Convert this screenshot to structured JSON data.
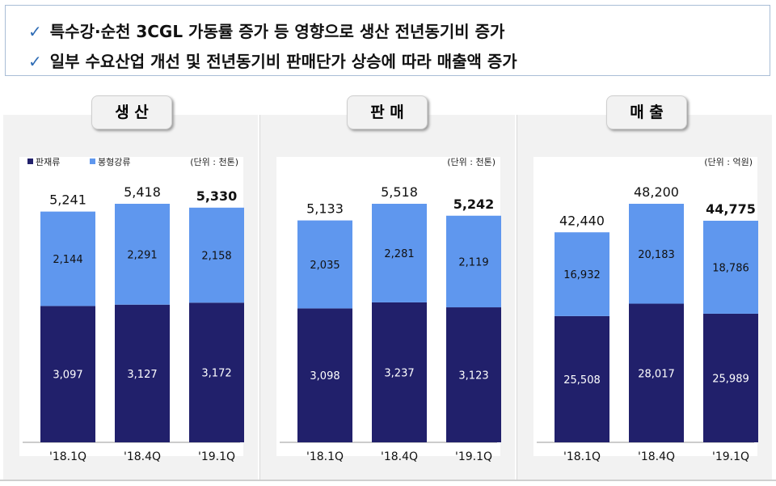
{
  "headline": {
    "bullets": [
      "특수강·순천 3CGL 가동률 증가 등 영향으로 생산 전년동기비 증가",
      "일부 수요산업 개선 및 전년동기비 판매단가 상승에 따라 매출액 증가"
    ],
    "check_glyph": "✓"
  },
  "colors": {
    "dark": "#21206b",
    "light": "#5f97ee",
    "check": "#2e6cb5"
  },
  "chart_data": [
    {
      "type": "bar",
      "stacked": true,
      "title": "생 산",
      "unit": "(단위 : 천톤)",
      "legend": [
        "판재류",
        "봉형강류"
      ],
      "categories": [
        "'18.1Q",
        "'18.4Q",
        "'19.1Q"
      ],
      "series": [
        {
          "name": "판재류",
          "values": [
            3097,
            3127,
            3172
          ]
        },
        {
          "name": "봉형강류",
          "values": [
            2144,
            2291,
            2158
          ]
        }
      ],
      "value_labels": [
        [
          "3,097",
          "3,127",
          "3,172"
        ],
        [
          "2,144",
          "2,291",
          "2,158"
        ]
      ],
      "totals": [
        "5,241",
        "5,418",
        "5,330"
      ],
      "total_values": [
        5241,
        5418,
        5330
      ]
    },
    {
      "type": "bar",
      "stacked": true,
      "title": "판 매",
      "unit": "(단위 : 천톤)",
      "legend": [],
      "categories": [
        "'18.1Q",
        "'18.4Q",
        "'19.1Q"
      ],
      "series": [
        {
          "name": "판재류",
          "values": [
            3098,
            3237,
            3123
          ]
        },
        {
          "name": "봉형강류",
          "values": [
            2035,
            2281,
            2119
          ]
        }
      ],
      "value_labels": [
        [
          "3,098",
          "3,237",
          "3,123"
        ],
        [
          "2,035",
          "2,281",
          "2,119"
        ]
      ],
      "totals": [
        "5,133",
        "5,518",
        "5,242"
      ],
      "total_values": [
        5133,
        5518,
        5242
      ]
    },
    {
      "type": "bar",
      "stacked": true,
      "title": "매 출",
      "unit": "(단위 : 억원)",
      "legend": [],
      "categories": [
        "'18.1Q",
        "'18.4Q",
        "'19.1Q"
      ],
      "series": [
        {
          "name": "판재류",
          "values": [
            25508,
            28017,
            25989
          ]
        },
        {
          "name": "봉형강류",
          "values": [
            16932,
            20183,
            18786
          ]
        }
      ],
      "value_labels": [
        [
          "25,508",
          "28,017",
          "25,989"
        ],
        [
          "16,932",
          "20,183",
          "18,786"
        ]
      ],
      "totals": [
        "42,440",
        "48,200",
        "44,775"
      ],
      "total_values": [
        42440,
        48200,
        44775
      ]
    }
  ]
}
